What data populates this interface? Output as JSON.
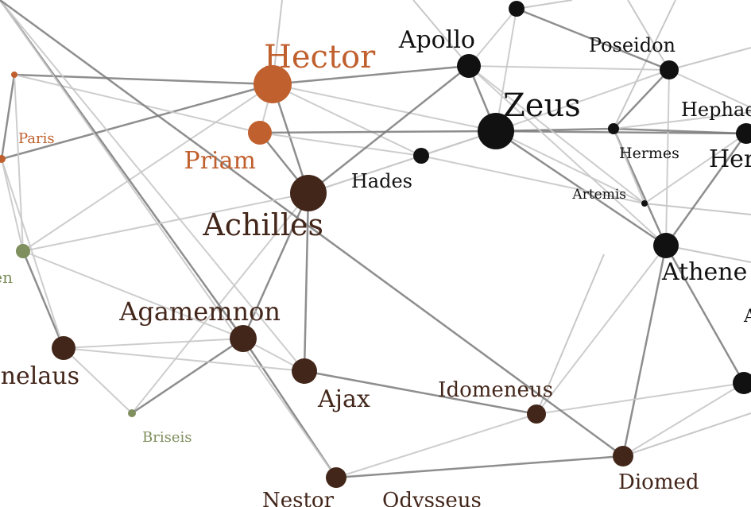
{
  "palette": {
    "trojan": "#c0602e",
    "greek": "#43261a",
    "god": "#111111",
    "neutral": "#7f8f5e",
    "edge_dark": "#7a7a7a",
    "edge_light": "#c8c8c8"
  },
  "nodes": {
    "hector": {
      "label": "Hector",
      "group": "trojan"
    },
    "priam": {
      "label": "Priam",
      "group": "trojan"
    },
    "paris": {
      "label": "Paris",
      "group": "trojan"
    },
    "paris_top": {
      "label": "",
      "group": "trojan"
    },
    "paris_low": {
      "label": "",
      "group": "trojan"
    },
    "helen": {
      "label": "en",
      "group": "neutral"
    },
    "briseis": {
      "label": "Briseis",
      "group": "neutral"
    },
    "achilles": {
      "label": "Achilles",
      "group": "greek"
    },
    "agamemnon": {
      "label": "Agamemnon",
      "group": "greek"
    },
    "menelaus": {
      "label": "enelaus",
      "group": "greek"
    },
    "ajax": {
      "label": "Ajax",
      "group": "greek"
    },
    "idomeneus": {
      "label": "Idomeneus",
      "group": "greek"
    },
    "nestor": {
      "label": "Nestor",
      "group": "greek"
    },
    "odysseus": {
      "label": "Odysseus",
      "group": "greek"
    },
    "diomed": {
      "label": "Diomed",
      "group": "greek"
    },
    "zeus": {
      "label": "Zeus",
      "group": "god"
    },
    "apollo": {
      "label": "Apollo",
      "group": "god"
    },
    "poseidon": {
      "label": "Poseidon",
      "group": "god"
    },
    "hades": {
      "label": "Hades",
      "group": "god"
    },
    "hermes": {
      "label": "Hermes",
      "group": "god"
    },
    "artemis": {
      "label": "Artemis",
      "group": "god"
    },
    "athene": {
      "label": "Athene",
      "group": "god"
    },
    "hephaestus": {
      "label": "Hephaes",
      "group": "god"
    },
    "hera": {
      "label": "Her",
      "group": "god"
    },
    "topnode": {
      "label": "",
      "group": "god"
    },
    "rightnode": {
      "label": "",
      "group": "god"
    },
    "offright_a": {
      "label": "A",
      "group": "god"
    }
  },
  "edges": [
    [
      "hector",
      "priam",
      "light"
    ],
    [
      "hector",
      "achilles",
      "dark"
    ],
    [
      "hector",
      "apollo",
      "dark"
    ],
    [
      "hector",
      "zeus",
      "light"
    ],
    [
      "hector",
      "paris_top",
      "dark"
    ],
    [
      "hector",
      "helen",
      "light"
    ],
    [
      "hector",
      "paris_low",
      "dark"
    ],
    [
      "hector",
      "hades",
      "light"
    ],
    [
      "priam",
      "achilles",
      "dark"
    ],
    [
      "priam",
      "zeus",
      "dark"
    ],
    [
      "priam",
      "hades",
      "light"
    ],
    [
      "priam",
      "paris_top",
      "light"
    ],
    [
      "achilles",
      "apollo",
      "dark"
    ],
    [
      "achilles",
      "hades",
      "light"
    ],
    [
      "achilles",
      "agamemnon",
      "dark"
    ],
    [
      "achilles",
      "briseis",
      "light"
    ],
    [
      "achilles",
      "ajax",
      "dark"
    ],
    [
      "achilles",
      "zeus",
      "light"
    ],
    [
      "zeus",
      "apollo",
      "dark"
    ],
    [
      "zeus",
      "hermes",
      "dark"
    ],
    [
      "zeus",
      "poseidon",
      "light"
    ],
    [
      "zeus",
      "hera",
      "dark"
    ],
    [
      "zeus",
      "athene",
      "dark"
    ],
    [
      "zeus",
      "artemis",
      "light"
    ],
    [
      "zeus",
      "hades",
      "light"
    ],
    [
      "zeus",
      "topnode",
      "light"
    ],
    [
      "apollo",
      "poseidon",
      "light"
    ],
    [
      "apollo",
      "topnode",
      "light"
    ],
    [
      "apollo",
      "artemis",
      "light"
    ],
    [
      "apollo",
      "athene",
      "light"
    ],
    [
      "poseidon",
      "hermes",
      "dark"
    ],
    [
      "poseidon",
      "hephaestus",
      "light"
    ],
    [
      "poseidon",
      "athene",
      "light"
    ],
    [
      "hermes",
      "hera",
      "dark"
    ],
    [
      "hermes",
      "athene",
      "dark"
    ],
    [
      "hermes",
      "artemis",
      "light"
    ],
    [
      "hermes",
      "hephaestus",
      "light"
    ],
    [
      "artemis",
      "hades",
      "light"
    ],
    [
      "artemis",
      "hera",
      "light"
    ],
    [
      "athene",
      "hera",
      "dark"
    ],
    [
      "athene",
      "diomed",
      "dark"
    ],
    [
      "athene",
      "rightnode",
      "dark"
    ],
    [
      "athene",
      "idomeneus",
      "light"
    ],
    [
      "topnode",
      "poseidon",
      "dark"
    ],
    [
      "agamemnon",
      "menelaus",
      "light"
    ],
    [
      "agamemnon",
      "briseis",
      "dark"
    ],
    [
      "agamemnon",
      "nestor",
      "dark"
    ],
    [
      "agamemnon",
      "odysseus",
      "dark"
    ],
    [
      "agamemnon",
      "helen",
      "light"
    ],
    [
      "agamemnon",
      "ajax",
      "light"
    ],
    [
      "menelaus",
      "helen",
      "dark"
    ],
    [
      "menelaus",
      "paris_low",
      "light"
    ],
    [
      "menelaus",
      "ajax",
      "light"
    ],
    [
      "menelaus",
      "briseis",
      "light"
    ],
    [
      "ajax",
      "idomeneus",
      "dark"
    ],
    [
      "ajax",
      "odysseus",
      "light"
    ],
    [
      "idomeneus",
      "nestor",
      "light"
    ],
    [
      "idomeneus",
      "rightnode",
      "light"
    ],
    [
      "nestor",
      "diomed",
      "dark"
    ],
    [
      "nestor",
      "odysseus",
      "light"
    ],
    [
      "odysseus",
      "diomed",
      "dark"
    ],
    [
      "diomed",
      "rightnode",
      "light"
    ],
    [
      "paris_top",
      "paris_low",
      "dark"
    ],
    [
      "paris_low",
      "helen",
      "light"
    ],
    [
      "paris_top",
      "helen",
      "light"
    ],
    [
      "helen",
      "achilles",
      "light"
    ],
    [
      "hades",
      "zeus",
      "light"
    ]
  ]
}
